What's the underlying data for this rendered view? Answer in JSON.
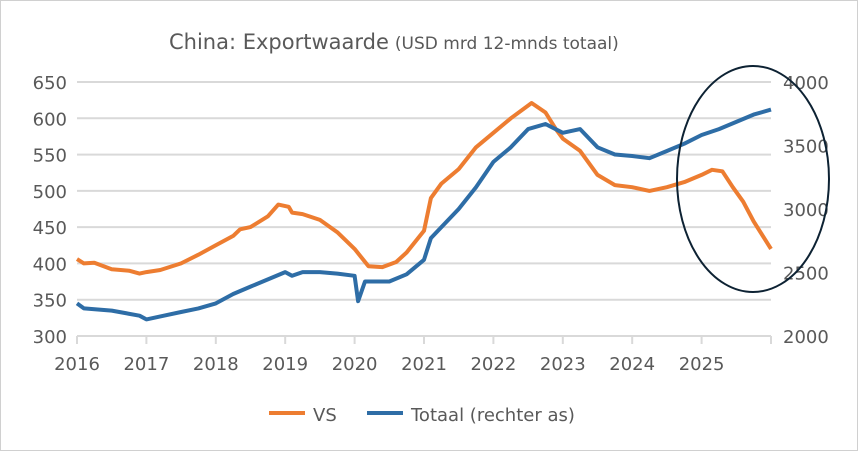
{
  "chart_data": {
    "type": "line",
    "title": "China: Exportwaarde",
    "subtitle": "(USD mrd 12-mnds totaal)",
    "xlabel": "",
    "ylabel": "",
    "x_ticks": [
      "2016",
      "2017",
      "2018",
      "2019",
      "2020",
      "2021",
      "2022",
      "2023",
      "2024",
      "2025"
    ],
    "xlim": [
      2016,
      2026
    ],
    "y_left": {
      "ticks": [
        "300",
        "350",
        "400",
        "450",
        "500",
        "550",
        "600",
        "650"
      ],
      "lim": [
        300,
        650
      ]
    },
    "y_right": {
      "ticks": [
        "2000",
        "2500",
        "3000",
        "3500",
        "4000"
      ],
      "lim": [
        2000,
        4000
      ]
    },
    "grid": true,
    "legend_position": "bottom",
    "annotation": "ellipse around 2025",
    "series": [
      {
        "name": "VS",
        "axis": "left",
        "color": "#ED7D31",
        "points": [
          [
            2016.0,
            406
          ],
          [
            2016.1,
            400
          ],
          [
            2016.25,
            401
          ],
          [
            2016.5,
            392
          ],
          [
            2016.75,
            390
          ],
          [
            2016.9,
            386
          ],
          [
            2017.0,
            388
          ],
          [
            2017.2,
            391
          ],
          [
            2017.5,
            400
          ],
          [
            2017.75,
            412
          ],
          [
            2018.0,
            425
          ],
          [
            2018.25,
            438
          ],
          [
            2018.35,
            447
          ],
          [
            2018.5,
            450
          ],
          [
            2018.75,
            465
          ],
          [
            2018.9,
            481
          ],
          [
            2019.05,
            478
          ],
          [
            2019.1,
            470
          ],
          [
            2019.25,
            468
          ],
          [
            2019.5,
            460
          ],
          [
            2019.75,
            443
          ],
          [
            2020.0,
            420
          ],
          [
            2020.2,
            396
          ],
          [
            2020.4,
            395
          ],
          [
            2020.6,
            402
          ],
          [
            2020.75,
            415
          ],
          [
            2021.0,
            445
          ],
          [
            2021.1,
            490
          ],
          [
            2021.25,
            510
          ],
          [
            2021.5,
            530
          ],
          [
            2021.75,
            560
          ],
          [
            2022.0,
            580
          ],
          [
            2022.25,
            600
          ],
          [
            2022.55,
            621
          ],
          [
            2022.75,
            608
          ],
          [
            2022.9,
            585
          ],
          [
            2023.0,
            572
          ],
          [
            2023.25,
            555
          ],
          [
            2023.5,
            522
          ],
          [
            2023.75,
            508
          ],
          [
            2024.0,
            505
          ],
          [
            2024.25,
            500
          ],
          [
            2024.5,
            505
          ],
          [
            2024.75,
            512
          ],
          [
            2025.0,
            522
          ],
          [
            2025.15,
            529
          ],
          [
            2025.3,
            527
          ],
          [
            2025.45,
            505
          ],
          [
            2025.6,
            485
          ],
          [
            2025.75,
            458
          ],
          [
            2026.0,
            420
          ]
        ]
      },
      {
        "name": "Totaal (rechter as)",
        "axis": "right",
        "color": "#2E6DA6",
        "points": [
          [
            2016.0,
            2257
          ],
          [
            2016.1,
            2217
          ],
          [
            2016.5,
            2200
          ],
          [
            2016.9,
            2160
          ],
          [
            2017.0,
            2131
          ],
          [
            2017.25,
            2160
          ],
          [
            2017.5,
            2189
          ],
          [
            2017.75,
            2217
          ],
          [
            2018.0,
            2257
          ],
          [
            2018.25,
            2331
          ],
          [
            2018.5,
            2389
          ],
          [
            2018.75,
            2446
          ],
          [
            2019.0,
            2503
          ],
          [
            2019.1,
            2474
          ],
          [
            2019.25,
            2503
          ],
          [
            2019.5,
            2503
          ],
          [
            2019.75,
            2491
          ],
          [
            2020.0,
            2474
          ],
          [
            2020.05,
            2274
          ],
          [
            2020.15,
            2429
          ],
          [
            2020.5,
            2429
          ],
          [
            2020.75,
            2486
          ],
          [
            2021.0,
            2600
          ],
          [
            2021.1,
            2771
          ],
          [
            2021.5,
            3000
          ],
          [
            2021.75,
            3171
          ],
          [
            2022.0,
            3371
          ],
          [
            2022.25,
            3486
          ],
          [
            2022.5,
            3629
          ],
          [
            2022.75,
            3669
          ],
          [
            2023.0,
            3600
          ],
          [
            2023.25,
            3629
          ],
          [
            2023.5,
            3486
          ],
          [
            2023.75,
            3429
          ],
          [
            2024.0,
            3417
          ],
          [
            2024.25,
            3400
          ],
          [
            2024.5,
            3457
          ],
          [
            2024.75,
            3514
          ],
          [
            2025.0,
            3583
          ],
          [
            2025.25,
            3629
          ],
          [
            2025.5,
            3686
          ],
          [
            2025.75,
            3743
          ],
          [
            2026.0,
            3783
          ]
        ]
      }
    ]
  }
}
